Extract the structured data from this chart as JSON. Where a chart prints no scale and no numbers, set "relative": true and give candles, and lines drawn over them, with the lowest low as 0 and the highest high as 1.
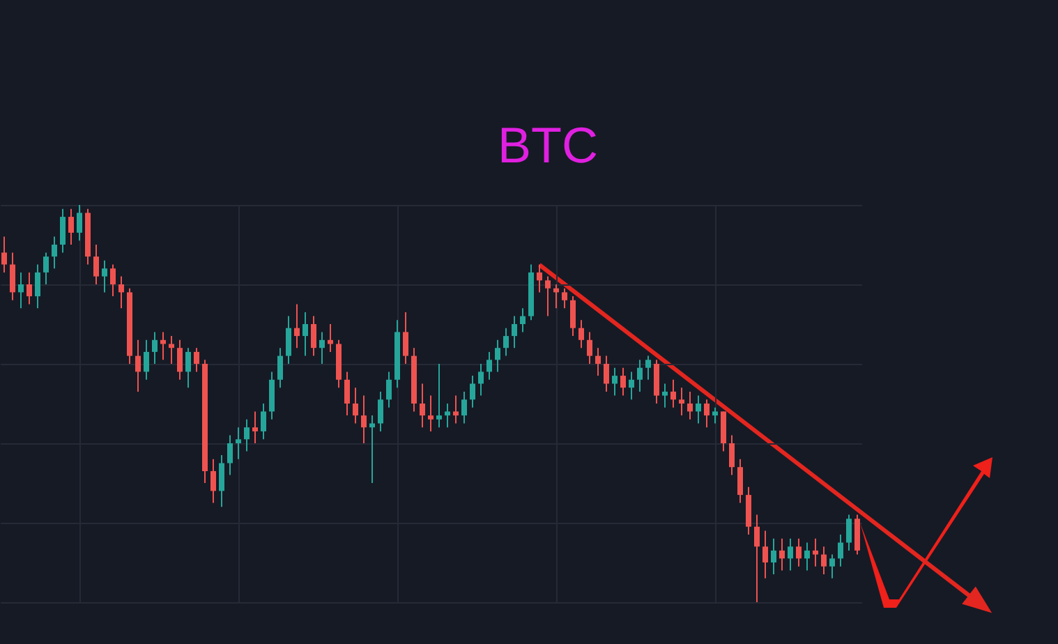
{
  "chart_data": {
    "type": "candlestick",
    "title": "BTC",
    "relative": true,
    "grid": true,
    "categories": [
      null,
      null,
      null,
      null,
      null,
      null,
      null,
      null,
      null,
      null,
      null,
      null,
      null,
      null,
      null,
      null,
      null,
      null,
      null,
      null,
      null,
      null,
      null,
      null,
      null,
      null,
      null,
      null,
      null,
      null,
      null,
      null,
      null,
      null,
      null,
      null,
      null,
      null,
      null,
      null,
      null,
      null,
      null,
      null,
      null,
      null,
      null,
      null,
      null,
      null,
      null,
      null,
      null,
      null,
      null,
      null,
      null,
      null,
      null,
      null,
      null,
      null,
      null,
      null,
      null,
      null,
      null,
      null,
      null,
      null,
      null,
      null,
      null,
      null,
      null,
      null,
      null,
      null,
      null,
      null,
      null,
      null,
      null,
      null,
      null,
      null,
      null,
      null,
      null,
      null,
      null,
      null,
      null,
      null,
      null,
      null,
      null,
      null,
      null,
      null,
      null,
      null,
      null
    ],
    "ohlc": [
      [
        0.88,
        0.92,
        0.83,
        0.85
      ],
      [
        0.85,
        0.88,
        0.76,
        0.78
      ],
      [
        0.78,
        0.83,
        0.74,
        0.8
      ],
      [
        0.8,
        0.83,
        0.75,
        0.77
      ],
      [
        0.77,
        0.85,
        0.74,
        0.83
      ],
      [
        0.83,
        0.88,
        0.8,
        0.87
      ],
      [
        0.87,
        0.92,
        0.84,
        0.9
      ],
      [
        0.9,
        0.99,
        0.88,
        0.97
      ],
      [
        0.97,
        0.99,
        0.9,
        0.93
      ],
      [
        0.93,
        1.0,
        0.91,
        0.98
      ],
      [
        0.98,
        0.99,
        0.85,
        0.87
      ],
      [
        0.87,
        0.9,
        0.8,
        0.82
      ],
      [
        0.82,
        0.86,
        0.78,
        0.84
      ],
      [
        0.84,
        0.85,
        0.77,
        0.8
      ],
      [
        0.8,
        0.82,
        0.74,
        0.78
      ],
      [
        0.78,
        0.79,
        0.6,
        0.62
      ],
      [
        0.62,
        0.66,
        0.53,
        0.58
      ],
      [
        0.58,
        0.66,
        0.56,
        0.63
      ],
      [
        0.63,
        0.68,
        0.6,
        0.66
      ],
      [
        0.66,
        0.68,
        0.61,
        0.65
      ],
      [
        0.65,
        0.67,
        0.6,
        0.64
      ],
      [
        0.64,
        0.66,
        0.56,
        0.58
      ],
      [
        0.58,
        0.64,
        0.54,
        0.63
      ],
      [
        0.63,
        0.64,
        0.58,
        0.6
      ],
      [
        0.6,
        0.61,
        0.3,
        0.33
      ],
      [
        0.33,
        0.36,
        0.25,
        0.28
      ],
      [
        0.28,
        0.37,
        0.24,
        0.35
      ],
      [
        0.35,
        0.42,
        0.32,
        0.4
      ],
      [
        0.4,
        0.44,
        0.36,
        0.41
      ],
      [
        0.41,
        0.46,
        0.38,
        0.44
      ],
      [
        0.44,
        0.48,
        0.4,
        0.43
      ],
      [
        0.43,
        0.5,
        0.41,
        0.48
      ],
      [
        0.48,
        0.58,
        0.46,
        0.56
      ],
      [
        0.56,
        0.64,
        0.54,
        0.62
      ],
      [
        0.62,
        0.72,
        0.6,
        0.69
      ],
      [
        0.69,
        0.75,
        0.64,
        0.67
      ],
      [
        0.67,
        0.73,
        0.62,
        0.7
      ],
      [
        0.7,
        0.72,
        0.62,
        0.64
      ],
      [
        0.64,
        0.68,
        0.6,
        0.66
      ],
      [
        0.66,
        0.7,
        0.63,
        0.65
      ],
      [
        0.65,
        0.66,
        0.54,
        0.56
      ],
      [
        0.56,
        0.58,
        0.47,
        0.5
      ],
      [
        0.5,
        0.54,
        0.45,
        0.47
      ],
      [
        0.47,
        0.52,
        0.4,
        0.44
      ],
      [
        0.44,
        0.47,
        0.3,
        0.45
      ],
      [
        0.45,
        0.53,
        0.43,
        0.51
      ],
      [
        0.51,
        0.58,
        0.49,
        0.56
      ],
      [
        0.56,
        0.71,
        0.54,
        0.68
      ],
      [
        0.68,
        0.73,
        0.6,
        0.62
      ],
      [
        0.62,
        0.64,
        0.48,
        0.5
      ],
      [
        0.5,
        0.55,
        0.44,
        0.47
      ],
      [
        0.47,
        0.52,
        0.43,
        0.46
      ],
      [
        0.46,
        0.6,
        0.44,
        0.47
      ],
      [
        0.47,
        0.5,
        0.44,
        0.48
      ],
      [
        0.48,
        0.52,
        0.45,
        0.47
      ],
      [
        0.47,
        0.53,
        0.45,
        0.51
      ],
      [
        0.51,
        0.57,
        0.49,
        0.55
      ],
      [
        0.55,
        0.6,
        0.52,
        0.58
      ],
      [
        0.58,
        0.63,
        0.56,
        0.61
      ],
      [
        0.61,
        0.66,
        0.58,
        0.64
      ],
      [
        0.64,
        0.69,
        0.62,
        0.67
      ],
      [
        0.67,
        0.72,
        0.64,
        0.7
      ],
      [
        0.7,
        0.74,
        0.68,
        0.72
      ],
      [
        0.72,
        0.85,
        0.71,
        0.83
      ],
      [
        0.83,
        0.85,
        0.78,
        0.81
      ],
      [
        0.81,
        0.82,
        0.72,
        0.79
      ],
      [
        0.79,
        0.8,
        0.74,
        0.78
      ],
      [
        0.78,
        0.79,
        0.74,
        0.76
      ],
      [
        0.76,
        0.77,
        0.67,
        0.69
      ],
      [
        0.69,
        0.71,
        0.64,
        0.66
      ],
      [
        0.66,
        0.68,
        0.6,
        0.62
      ],
      [
        0.62,
        0.64,
        0.57,
        0.6
      ],
      [
        0.6,
        0.62,
        0.53,
        0.55
      ],
      [
        0.55,
        0.59,
        0.52,
        0.57
      ],
      [
        0.57,
        0.59,
        0.52,
        0.54
      ],
      [
        0.54,
        0.58,
        0.51,
        0.56
      ],
      [
        0.56,
        0.61,
        0.53,
        0.59
      ],
      [
        0.59,
        0.62,
        0.56,
        0.61
      ],
      [
        0.6,
        0.61,
        0.5,
        0.52
      ],
      [
        0.52,
        0.55,
        0.49,
        0.53
      ],
      [
        0.53,
        0.56,
        0.49,
        0.51
      ],
      [
        0.51,
        0.54,
        0.47,
        0.5
      ],
      [
        0.5,
        0.53,
        0.46,
        0.48
      ],
      [
        0.48,
        0.52,
        0.45,
        0.5
      ],
      [
        0.5,
        0.51,
        0.44,
        0.47
      ],
      [
        0.47,
        0.49,
        0.45,
        0.48
      ],
      [
        0.48,
        0.48,
        0.38,
        0.4
      ],
      [
        0.4,
        0.42,
        0.32,
        0.34
      ],
      [
        0.34,
        0.36,
        0.25,
        0.27
      ],
      [
        0.27,
        0.29,
        0.17,
        0.19
      ],
      [
        0.19,
        0.22,
        0.0,
        0.14
      ],
      [
        0.14,
        0.18,
        0.06,
        0.1
      ],
      [
        0.1,
        0.16,
        0.07,
        0.13
      ],
      [
        0.13,
        0.16,
        0.08,
        0.11
      ],
      [
        0.11,
        0.16,
        0.08,
        0.14
      ],
      [
        0.14,
        0.16,
        0.09,
        0.11
      ],
      [
        0.11,
        0.15,
        0.08,
        0.13
      ],
      [
        0.13,
        0.16,
        0.09,
        0.12
      ],
      [
        0.12,
        0.14,
        0.07,
        0.09
      ],
      [
        0.09,
        0.12,
        0.06,
        0.11
      ],
      [
        0.11,
        0.17,
        0.09,
        0.15
      ],
      [
        0.15,
        0.22,
        0.13,
        0.21
      ],
      [
        0.21,
        0.22,
        0.12,
        0.13
      ]
    ]
  }
}
